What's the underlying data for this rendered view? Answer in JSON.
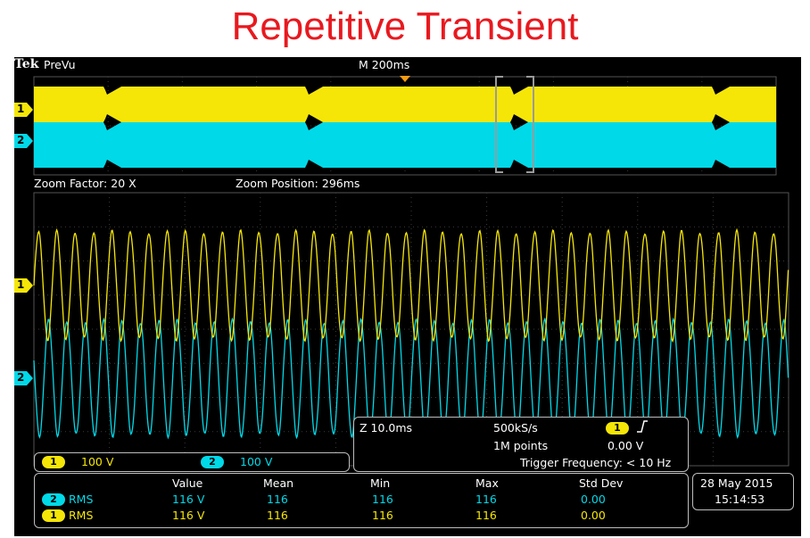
{
  "slide_title": "Repetitive Transient",
  "scope": {
    "brand": "Tek",
    "mode": "PreVu",
    "timebase": "M 200ms",
    "zoom_factor": "Zoom Factor: 20 X",
    "zoom_position": "Zoom Position: 296ms",
    "ch1_marker": "1",
    "ch2_marker": "2"
  },
  "channels": [
    {
      "id": "1",
      "scale": "100 V",
      "color": "#f5e608"
    },
    {
      "id": "2",
      "scale": "100 V",
      "color": "#00d9e8"
    }
  ],
  "horizontal": {
    "zoom_scale": "Z 10.0ms",
    "sample_rate": "500kS/s",
    "record_length": "1M points",
    "trigger_channel": "1",
    "trigger_slope_icon": "rising-edge-icon",
    "trigger_level": "0.00 V",
    "trigger_frequency": "Trigger Frequency: < 10 Hz"
  },
  "measurements": {
    "headers": [
      "Value",
      "Mean",
      "Min",
      "Max",
      "Std Dev"
    ],
    "rows": [
      {
        "channel": "2",
        "type": "RMS",
        "value": "116 V",
        "mean": "116",
        "min": "116",
        "max": "116",
        "std": "0.00",
        "color": "#00d9e8"
      },
      {
        "channel": "1",
        "type": "RMS",
        "value": "116 V",
        "mean": "116",
        "min": "116",
        "max": "116",
        "std": "0.00",
        "color": "#f5e608"
      }
    ]
  },
  "datetime": {
    "date": "28 May  2015",
    "time": "15:14:53"
  },
  "colors": {
    "ch1": "#f5e608",
    "ch2": "#00d9e8",
    "title": "#e8191f"
  }
}
